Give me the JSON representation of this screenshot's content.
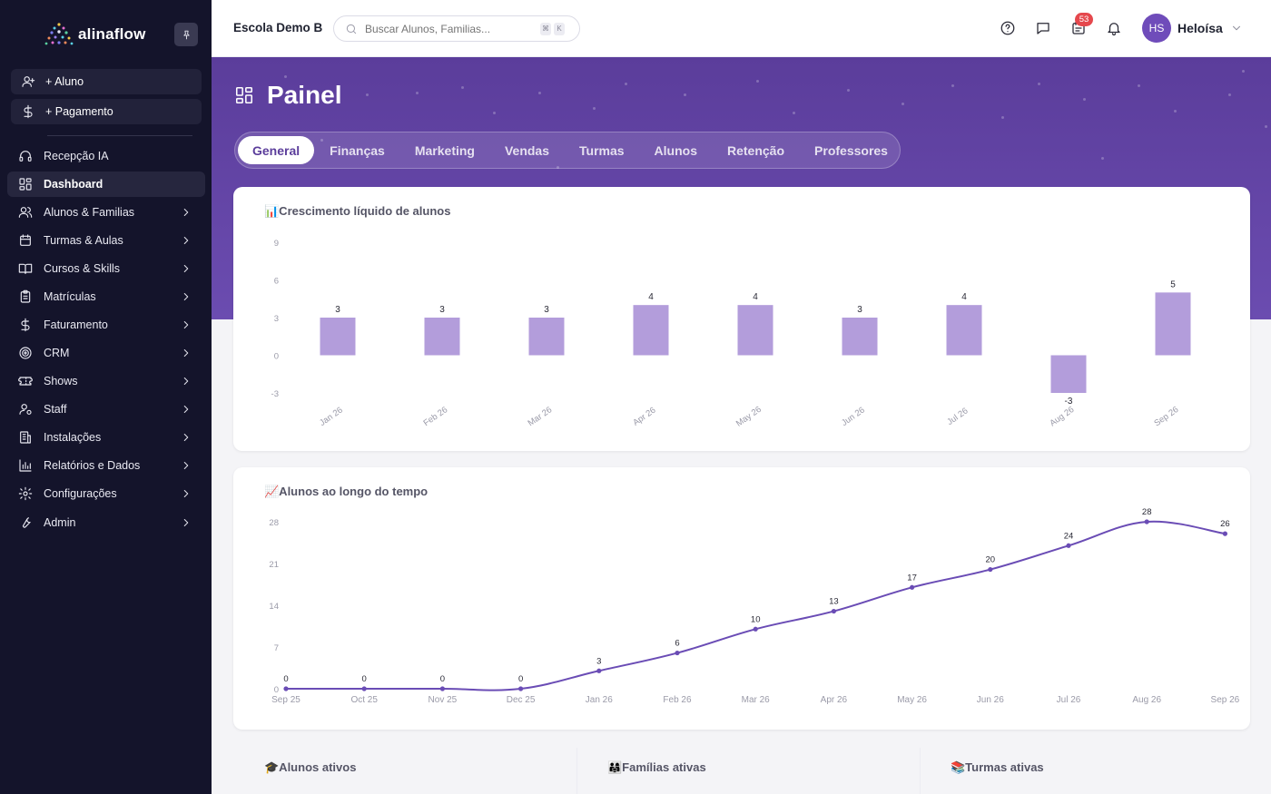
{
  "app": {
    "name": "alinaflow"
  },
  "sidebar": {
    "quick_actions": [
      {
        "label": "+ Aluno",
        "icon": "user-plus-icon"
      },
      {
        "label": "+ Pagamento",
        "icon": "dollar-icon"
      }
    ],
    "items": [
      {
        "label": "Recepção IA",
        "icon": "headset-icon",
        "chevron": false,
        "active": false
      },
      {
        "label": "Dashboard",
        "icon": "dashboard-icon",
        "chevron": false,
        "active": true
      },
      {
        "label": "Alunos & Familias",
        "icon": "users-icon",
        "chevron": true,
        "active": false
      },
      {
        "label": "Turmas & Aulas",
        "icon": "calendar-icon",
        "chevron": true,
        "active": false
      },
      {
        "label": "Cursos & Skills",
        "icon": "book-icon",
        "chevron": true,
        "active": false
      },
      {
        "label": "Matrículas",
        "icon": "clipboard-icon",
        "chevron": true,
        "active": false
      },
      {
        "label": "Faturamento",
        "icon": "dollar-icon",
        "chevron": true,
        "active": false
      },
      {
        "label": "CRM",
        "icon": "target-icon",
        "chevron": true,
        "active": false
      },
      {
        "label": "Shows",
        "icon": "ticket-icon",
        "chevron": true,
        "active": false
      },
      {
        "label": "Staff",
        "icon": "staff-icon",
        "chevron": true,
        "active": false
      },
      {
        "label": "Instalações",
        "icon": "building-icon",
        "chevron": true,
        "active": false
      },
      {
        "label": "Relatórios e Dados",
        "icon": "bar-chart-icon",
        "chevron": true,
        "active": false
      },
      {
        "label": "Configurações",
        "icon": "gear-icon",
        "chevron": true,
        "active": false
      },
      {
        "label": "Admin",
        "icon": "wrench-icon",
        "chevron": true,
        "active": false
      }
    ]
  },
  "header": {
    "school": "Escola Demo B",
    "search": {
      "placeholder": "Buscar Alunos, Familias...",
      "kbd": [
        "⌘",
        "K"
      ]
    },
    "notification_count": "53",
    "user": {
      "initials": "HS",
      "name": "Heloísa"
    }
  },
  "page": {
    "title": "Painel",
    "tabs": [
      "General",
      "Finanças",
      "Marketing",
      "Vendas",
      "Turmas",
      "Alunos",
      "Retenção",
      "Professores"
    ],
    "active_tab": 0
  },
  "colors": {
    "brand": "#5b3d9b",
    "bar": "#b39ddb",
    "line": "#6a4cb5",
    "sidebar": "#14142b"
  },
  "chart_data": [
    {
      "type": "bar",
      "title": "📊Crescimento líquido de alunos",
      "categories": [
        "Jan 26",
        "Feb 26",
        "Mar 26",
        "Apr 26",
        "May 26",
        "Jun 26",
        "Jul 26",
        "Aug 26",
        "Sep 26"
      ],
      "values": [
        3,
        3,
        3,
        4,
        4,
        3,
        4,
        -3,
        5
      ],
      "yticks": [
        9,
        6,
        3,
        0,
        -3
      ],
      "ylim": [
        -3,
        9
      ],
      "grid": false
    },
    {
      "type": "line",
      "title": "📈Alunos ao longo do tempo",
      "categories": [
        "Sep 25",
        "Oct 25",
        "Nov 25",
        "Dec 25",
        "Jan 26",
        "Feb 26",
        "Mar 26",
        "Apr 26",
        "May 26",
        "Jun 26",
        "Jul 26",
        "Aug 26",
        "Sep 26"
      ],
      "values": [
        0,
        0,
        0,
        0,
        3,
        6,
        10,
        13,
        17,
        20,
        24,
        28,
        26
      ],
      "yticks": [
        28,
        21,
        14,
        7,
        0
      ],
      "ylim": [
        0,
        28
      ],
      "grid": false
    }
  ],
  "stats": [
    {
      "label": "🎓Alunos ativos"
    },
    {
      "label": "👨‍👩‍👧Famílias ativas"
    },
    {
      "label": "📚Turmas ativas"
    }
  ]
}
